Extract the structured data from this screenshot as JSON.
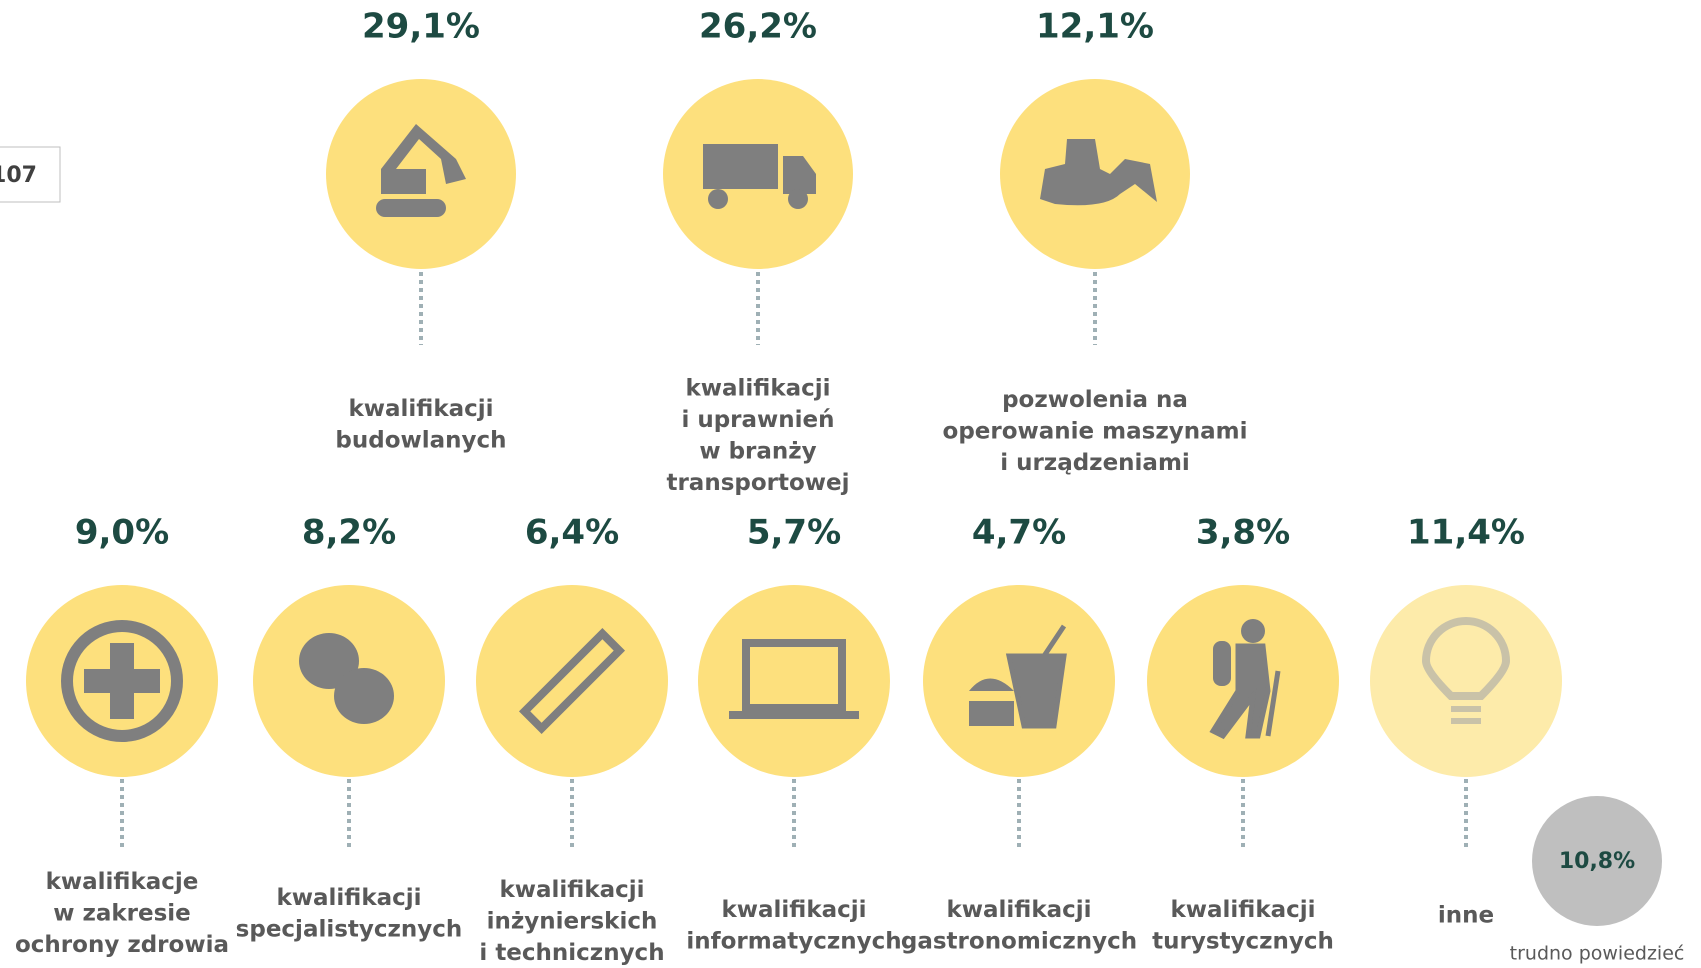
{
  "side_box": "107",
  "top_items": [
    {
      "value": "29,1%",
      "label": [
        "kwalifikacji",
        "budowlanych"
      ]
    },
    {
      "value": "26,2%",
      "label": [
        "kwalifikacji",
        "i uprawnień",
        "w branży",
        "transportowej"
      ]
    },
    {
      "value": "12,1%",
      "label": [
        "pozwolenia na",
        "operowanie maszynami",
        "i urządzeniami"
      ]
    }
  ],
  "bottom_items": [
    {
      "value": "9,0%",
      "label": [
        "kwalifikacje",
        "w zakresie",
        "ochrony zdrowia"
      ]
    },
    {
      "value": "8,2%",
      "label": [
        "kwalifikacji",
        "specjalistycznych"
      ]
    },
    {
      "value": "6,4%",
      "label": [
        "kwalifikacji",
        "inżynierskich",
        "i technicznych"
      ]
    },
    {
      "value": "5,7%",
      "label": [
        "kwalifikacji",
        "informatycznych"
      ]
    },
    {
      "value": "4,7%",
      "label": [
        "kwalifikacji",
        "gastronomicznych"
      ]
    },
    {
      "value": "3,8%",
      "label": [
        "kwalifikacji",
        "turystycznych"
      ]
    },
    {
      "value": "11,4%",
      "label": [
        "inne"
      ]
    }
  ],
  "other": {
    "value": "10,8%",
    "label": "trudno powiedzieć"
  }
}
